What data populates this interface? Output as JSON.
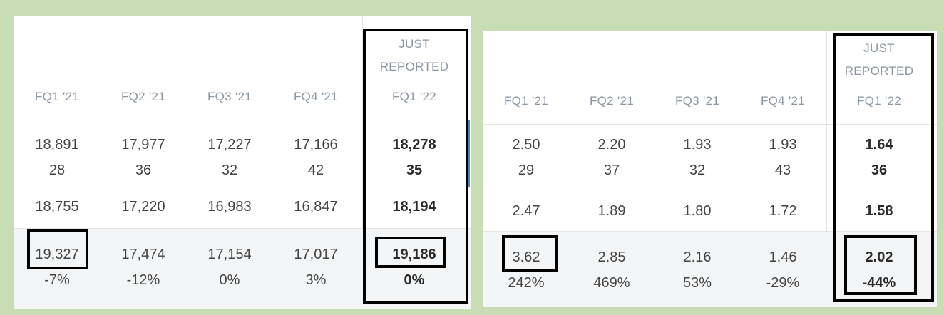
{
  "left": {
    "just_reported_label": [
      "JUST",
      "REPORTED"
    ],
    "headers": [
      "FQ1 '21",
      "FQ2 '21",
      "FQ3 '21",
      "FQ4 '21",
      "FQ1 '22"
    ],
    "row1": [
      [
        "18,891",
        "28"
      ],
      [
        "17,977",
        "36"
      ],
      [
        "17,227",
        "32"
      ],
      [
        "17,166",
        "42"
      ],
      [
        "18,278",
        "35"
      ]
    ],
    "row2": [
      "18,755",
      "17,220",
      "16,983",
      "16,847",
      "18,194"
    ],
    "row3": [
      [
        "19,327",
        "-7%"
      ],
      [
        "17,474",
        "-12%"
      ],
      [
        "17,154",
        "0%"
      ],
      [
        "17,017",
        "3%"
      ],
      [
        "19,186",
        "0%"
      ]
    ]
  },
  "right": {
    "just_reported_label": [
      "JUST",
      "REPORTED"
    ],
    "headers": [
      "FQ1 '21",
      "FQ2 '21",
      "FQ3 '21",
      "FQ4 '21",
      "FQ1 '22"
    ],
    "row1": [
      [
        "2.50",
        "29"
      ],
      [
        "2.20",
        "37"
      ],
      [
        "1.93",
        "32"
      ],
      [
        "1.93",
        "43"
      ],
      [
        "1.64",
        "36"
      ]
    ],
    "row2": [
      "2.47",
      "1.89",
      "1.80",
      "1.72",
      "1.58"
    ],
    "row3": [
      [
        "3.62",
        "242%"
      ],
      [
        "2.85",
        "469%"
      ],
      [
        "2.16",
        "53%"
      ],
      [
        "1.46",
        "-29%"
      ],
      [
        "2.02",
        "-44%"
      ]
    ]
  }
}
